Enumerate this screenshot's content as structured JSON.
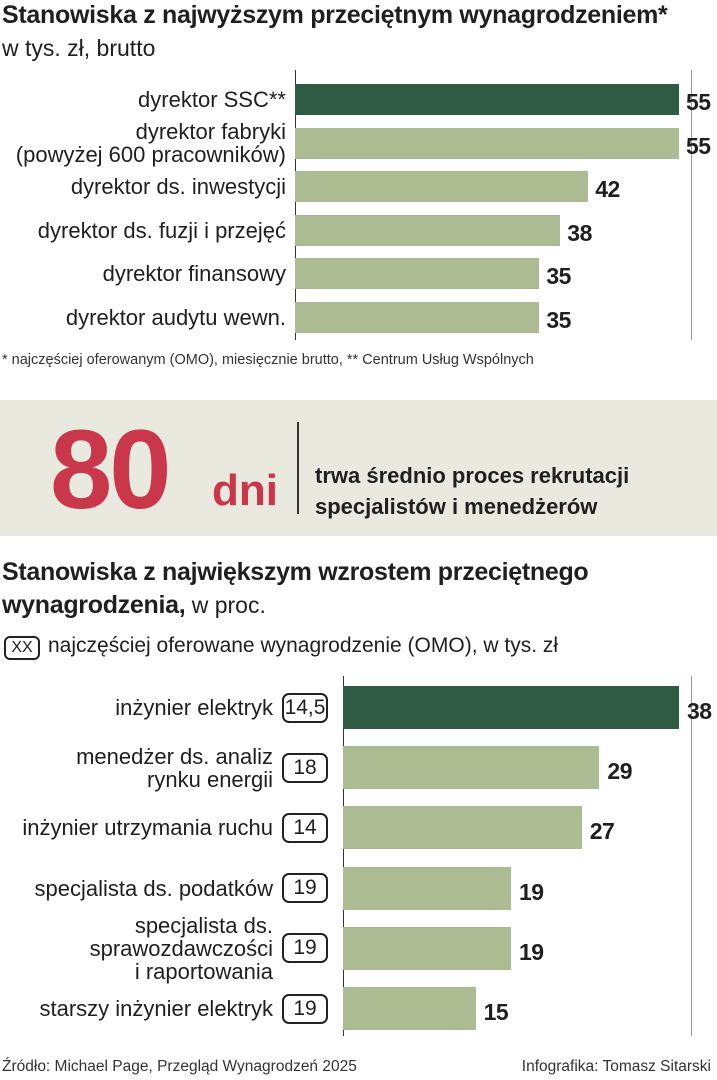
{
  "colors": {
    "highlight": "#2f5a43",
    "bar": "#acbb92",
    "accent": "#c9374a",
    "banner_bg": "#e9e9e0"
  },
  "chart1": {
    "title": "Stanowiska z najwyższym przeciętnym wynagrodzeniem*",
    "subtitle": "w tys. zł, brutto",
    "footnote": "* najczęściej oferowanym (OMO), miesięcznie brutto, ** Centrum Usług Wspólnych"
  },
  "banner": {
    "number": "80",
    "unit": "dni",
    "line1": "trwa średnio proces rekrutacji",
    "line2": "specjalistów i menedżerów"
  },
  "chart2": {
    "title_bold": "Stanowiska z największym wzrostem przeciętnego",
    "title_bold2": "wynagrodzenia,",
    "title_normal": " w proc.",
    "legend_box": "XX",
    "legend_text": "najczęściej oferowane wynagrodzenie (OMO), w tys. zł"
  },
  "footer": {
    "source": "Źródło: Michael Page, Przegląd Wynagrodzeń 2025",
    "credit": "Infografika: Tomasz Sitarski"
  },
  "chart_data": [
    {
      "type": "bar",
      "orientation": "horizontal",
      "title": "Stanowiska z najwyższym przeciętnym wynagrodzeniem*",
      "subtitle": "w tys. zł, brutto",
      "categories": [
        [
          "dyrektor SSC**"
        ],
        [
          "dyrektor fabryki",
          "(powyżej 600 pracowników)"
        ],
        [
          "dyrektor ds. inwestycji"
        ],
        [
          "dyrektor ds. fuzji i przejęć"
        ],
        [
          "dyrektor finansowy"
        ],
        [
          "dyrektor audytu wewn."
        ]
      ],
      "values": [
        55,
        55,
        42,
        38,
        35,
        35
      ],
      "value_labels": [
        "55",
        "55",
        "42",
        "38",
        "35",
        "35"
      ],
      "highlight_index": 0,
      "xlim": [
        0,
        55
      ]
    },
    {
      "type": "bar",
      "orientation": "horizontal",
      "title": "Stanowiska z największym wzrostem przeciętnego wynagrodzenia, w proc.",
      "categories": [
        [
          "inżynier elektryk"
        ],
        [
          "menedżer ds. analiz",
          "rynku energii"
        ],
        [
          "inżynier utrzymania ruchu"
        ],
        [
          "specjalista ds. podatków"
        ],
        [
          "specjalista ds.",
          "sprawozdawczości",
          "i raportowania"
        ],
        [
          "starszy inżynier elektryk"
        ]
      ],
      "values": [
        38,
        29,
        27,
        19,
        19,
        15
      ],
      "value_labels": [
        "38",
        "29",
        "27",
        "19",
        "19",
        "15"
      ],
      "omo": [
        "14,5",
        "18",
        "14",
        "19",
        "19",
        "19"
      ],
      "highlight_index": 0,
      "xlim": [
        0,
        38
      ]
    }
  ]
}
